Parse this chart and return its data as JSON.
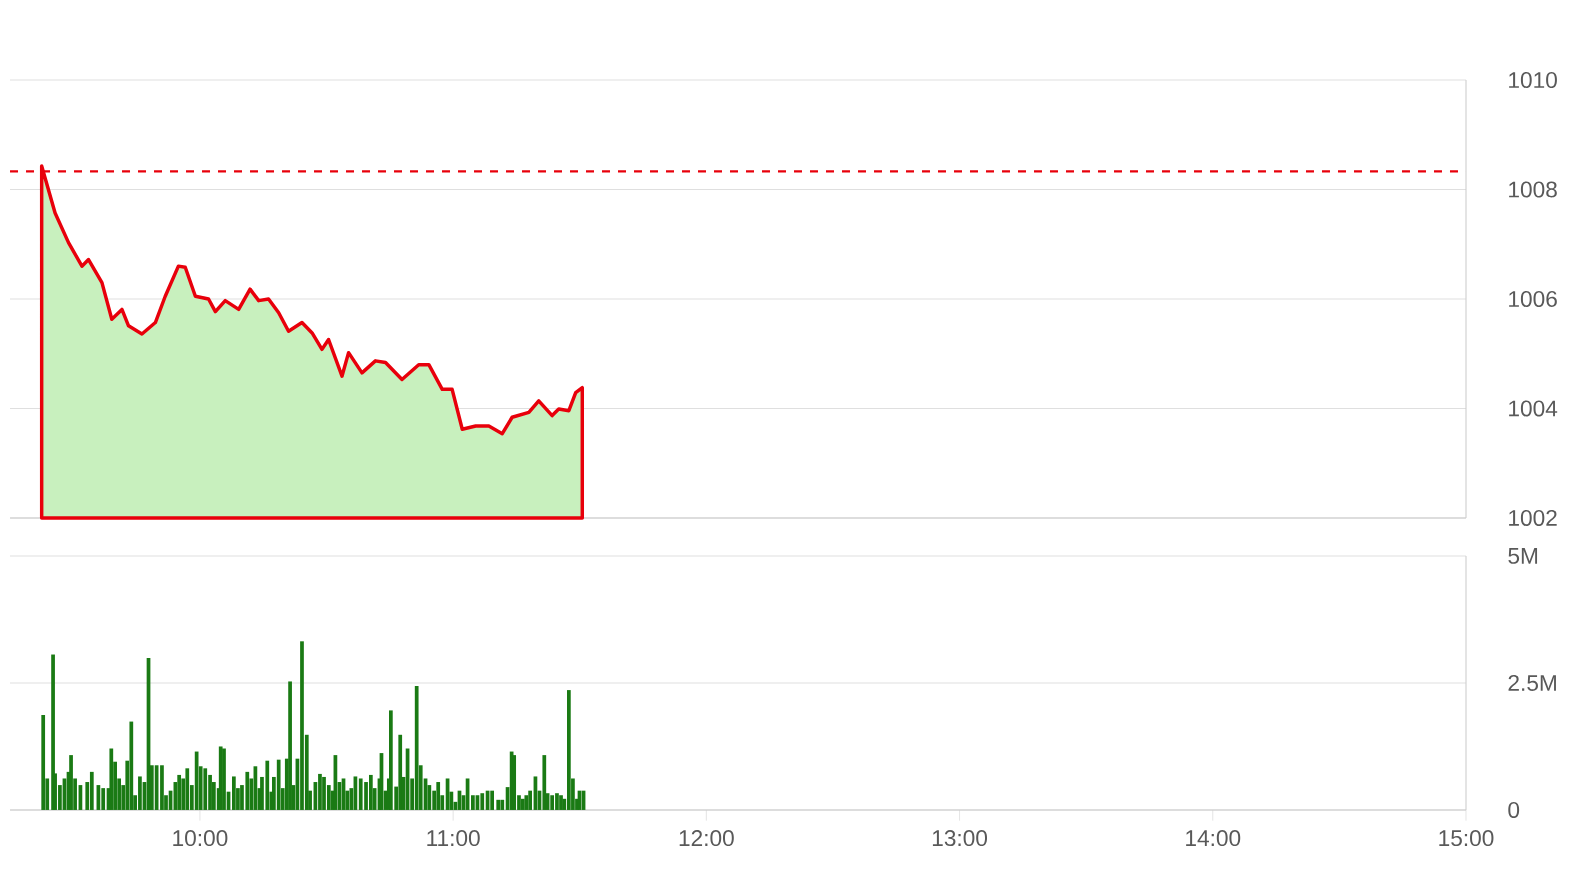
{
  "chart_data": [
    {
      "type": "area",
      "xlim": [
        9.25,
        15
      ],
      "ylim": [
        1002,
        1010
      ],
      "yticks": [
        1002,
        1004,
        1006,
        1008,
        1010
      ],
      "grid": "y",
      "tick_labels": "y",
      "ref_lines": [
        {
          "axis": "y",
          "value": 1008.33,
          "color": "#e8000b",
          "line_style": "dashed"
        }
      ],
      "series": [
        {
          "color": "#e8000b",
          "x": [
            9.375,
            9.428,
            9.481,
            9.534,
            9.56,
            9.613,
            9.652,
            9.692,
            9.718,
            9.771,
            9.824,
            9.863,
            9.915,
            9.942,
            9.982,
            10.034,
            10.061,
            10.1,
            10.153,
            10.198,
            10.232,
            10.271,
            10.311,
            10.35,
            10.403,
            10.443,
            10.482,
            10.508,
            10.561,
            10.587,
            10.64,
            10.693,
            10.733,
            10.798,
            10.864,
            10.904,
            10.957,
            10.996,
            11.036,
            11.089,
            11.141,
            11.194,
            11.233,
            11.299,
            11.338,
            11.391,
            11.417,
            11.457,
            11.484,
            11.51
          ],
          "values": [
            1008.43,
            1007.57,
            1007.03,
            1006.6,
            1006.72,
            1006.3,
            1005.63,
            1005.81,
            1005.51,
            1005.36,
            1005.57,
            1006.05,
            1006.6,
            1006.58,
            1006.05,
            1006.0,
            1005.77,
            1005.97,
            1005.81,
            1006.18,
            1005.97,
            1006.0,
            1005.75,
            1005.41,
            1005.57,
            1005.38,
            1005.08,
            1005.26,
            1004.59,
            1005.02,
            1004.65,
            1004.87,
            1004.84,
            1004.53,
            1004.8,
            1004.8,
            1004.35,
            1004.35,
            1003.62,
            1003.68,
            1003.68,
            1003.54,
            1003.84,
            1003.93,
            1004.14,
            1003.87,
            1003.99,
            1003.96,
            1004.29,
            1004.38
          ]
        }
      ]
    },
    {
      "type": "bar",
      "xlim": [
        9.25,
        15
      ],
      "ylim": [
        0,
        5
      ],
      "grid": "y",
      "xticks": [
        {
          "value": 10,
          "label": "10:00"
        },
        {
          "value": 11,
          "label": "11:00"
        },
        {
          "value": 12,
          "label": "12:00"
        },
        {
          "value": 13,
          "label": "13:00"
        },
        {
          "value": 14,
          "label": "14:00"
        },
        {
          "value": 15,
          "label": "15:00"
        }
      ],
      "yticks": [
        0,
        {
          "value": 2.5,
          "label": "2.5M"
        },
        {
          "value": 5,
          "label": "5M"
        }
      ],
      "series": [
        {
          "color": "#1a7a14",
          "x": [
            9.381,
            9.397,
            9.42,
            9.428,
            9.447,
            9.465,
            9.481,
            9.491,
            9.507,
            9.528,
            9.555,
            9.573,
            9.599,
            9.618,
            9.639,
            9.65,
            9.665,
            9.681,
            9.697,
            9.713,
            9.729,
            9.744,
            9.763,
            9.781,
            9.797,
            9.81,
            9.829,
            9.85,
            9.866,
            9.884,
            9.903,
            9.918,
            9.934,
            9.95,
            9.968,
            9.987,
            10.003,
            10.021,
            10.04,
            10.055,
            10.074,
            10.082,
            10.095,
            10.113,
            10.134,
            10.15,
            10.166,
            10.187,
            10.203,
            10.219,
            10.235,
            10.245,
            10.266,
            10.282,
            10.292,
            10.311,
            10.327,
            10.343,
            10.356,
            10.369,
            10.385,
            10.403,
            10.422,
            10.435,
            10.456,
            10.474,
            10.49,
            10.509,
            10.524,
            10.535,
            10.551,
            10.567,
            10.582,
            10.598,
            10.614,
            10.635,
            10.656,
            10.675,
            10.69,
            10.709,
            10.717,
            10.733,
            10.746,
            10.754,
            10.775,
            10.791,
            10.804,
            10.82,
            10.838,
            10.856,
            10.872,
            10.891,
            10.906,
            10.925,
            10.941,
            10.957,
            10.978,
            10.993,
            11.009,
            11.025,
            11.041,
            11.057,
            11.078,
            11.096,
            11.115,
            11.136,
            11.154,
            11.178,
            11.194,
            11.215,
            11.231,
            11.241,
            11.26,
            11.275,
            11.289,
            11.304,
            11.325,
            11.341,
            11.36,
            11.373,
            11.391,
            11.41,
            11.426,
            11.439,
            11.457,
            11.473,
            11.489,
            11.499,
            11.515
          ],
          "values": [
            1.87,
            0.62,
            3.06,
            0.72,
            0.49,
            0.62,
            0.75,
            1.08,
            0.62,
            0.49,
            0.55,
            0.75,
            0.49,
            0.43,
            0.43,
            1.21,
            0.95,
            0.62,
            0.49,
            0.97,
            1.74,
            0.29,
            0.66,
            0.55,
            2.99,
            0.88,
            0.88,
            0.88,
            0.29,
            0.38,
            0.55,
            0.69,
            0.62,
            0.82,
            0.49,
            1.15,
            0.86,
            0.82,
            0.69,
            0.55,
            0.43,
            1.25,
            1.21,
            0.36,
            0.66,
            0.43,
            0.49,
            0.75,
            0.62,
            0.86,
            0.43,
            0.65,
            0.97,
            0.36,
            0.65,
            0.99,
            0.43,
            1.01,
            2.53,
            0.49,
            1.01,
            3.32,
            1.48,
            0.38,
            0.55,
            0.71,
            0.65,
            0.49,
            0.38,
            1.08,
            0.55,
            0.62,
            0.38,
            0.43,
            0.66,
            0.62,
            0.55,
            0.69,
            0.43,
            0.62,
            1.12,
            0.38,
            0.62,
            1.96,
            0.46,
            1.48,
            0.65,
            1.21,
            0.62,
            2.44,
            0.88,
            0.62,
            0.49,
            0.38,
            0.55,
            0.29,
            0.62,
            0.36,
            0.16,
            0.38,
            0.29,
            0.62,
            0.29,
            0.29,
            0.33,
            0.38,
            0.38,
            0.2,
            0.2,
            0.45,
            1.15,
            1.08,
            0.29,
            0.22,
            0.29,
            0.38,
            0.66,
            0.38,
            1.08,
            0.33,
            0.29,
            0.33,
            0.29,
            0.22,
            2.36,
            0.62,
            0.22,
            0.38,
            0.38
          ]
        }
      ]
    }
  ]
}
